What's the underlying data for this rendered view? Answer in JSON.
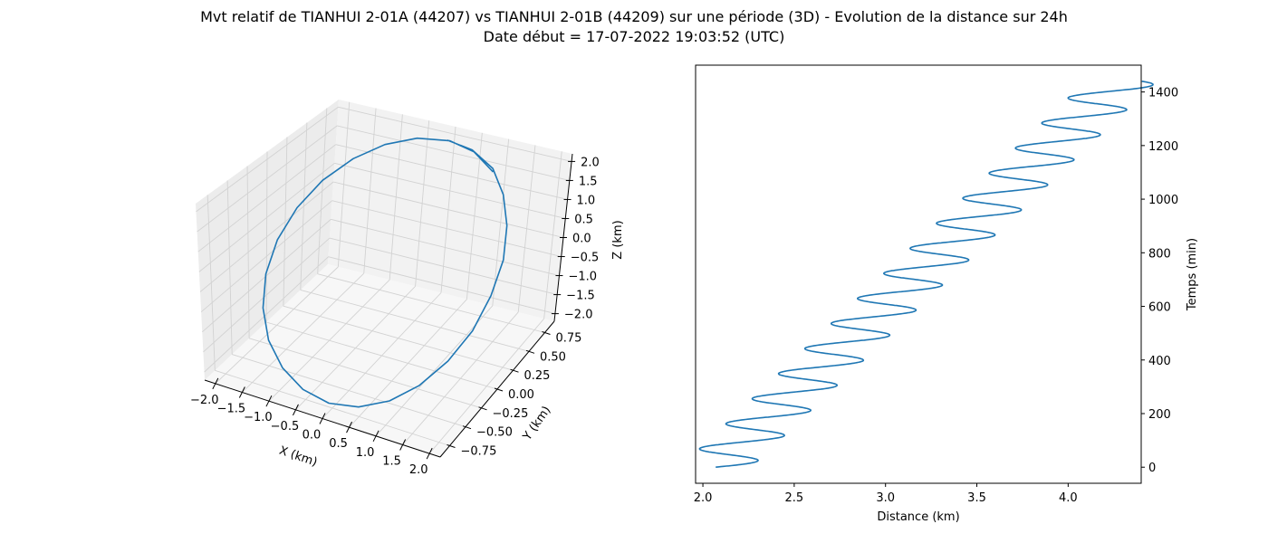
{
  "figure": {
    "title": "Mvt relatif de TIANHUI 2-01A (44207) vs TIANHUI 2-01B (44209) sur une période (3D) - Evolution de la distance sur 24h",
    "subtitle": "Date début = 17-07-2022 19:03:52 (UTC)"
  },
  "chart_data": [
    {
      "type": "line3d",
      "xlabel": "X (km)",
      "ylabel": "Y (km)",
      "zlabel": "Z (km)",
      "xlim": [
        -2.2,
        2.2
      ],
      "ylim": [
        -0.9,
        0.9
      ],
      "zlim": [
        -2.2,
        2.2
      ],
      "xticks": [
        "−2.0",
        "−1.5",
        "−1.0",
        "−0.5",
        "0.0",
        "0.5",
        "1.0",
        "1.5",
        "2.0"
      ],
      "yticks": [
        "−0.75",
        "−0.50",
        "−0.25",
        "0.00",
        "0.25",
        "0.50",
        "0.75"
      ],
      "zticks": [
        "−2.0",
        "−1.5",
        "−1.0",
        "−0.5",
        "0.0",
        "0.5",
        "1.0",
        "1.5",
        "2.0"
      ],
      "grid": true,
      "color": "#1f77b4",
      "series": [
        {
          "points": [
            [
              0.0,
              0.8,
              2.0
            ],
            [
              0.5,
              0.78,
              1.94
            ],
            [
              1.0,
              0.71,
              1.73
            ],
            [
              1.41,
              0.57,
              1.41
            ],
            [
              1.73,
              0.4,
              1.0
            ],
            [
              1.94,
              0.21,
              0.52
            ],
            [
              2.0,
              0.0,
              0.0
            ],
            [
              1.94,
              -0.21,
              -0.52
            ],
            [
              1.73,
              -0.4,
              -1.0
            ],
            [
              1.41,
              -0.57,
              -1.41
            ],
            [
              1.0,
              -0.69,
              -1.73
            ],
            [
              0.52,
              -0.77,
              -1.93
            ],
            [
              0.0,
              -0.8,
              -2.0
            ],
            [
              -0.52,
              -0.77,
              -1.93
            ],
            [
              -1.0,
              -0.69,
              -1.73
            ],
            [
              -1.41,
              -0.57,
              -1.41
            ],
            [
              -1.73,
              -0.4,
              -1.0
            ],
            [
              -1.93,
              -0.21,
              -0.52
            ],
            [
              -2.0,
              0.0,
              0.0
            ],
            [
              -1.93,
              0.21,
              0.52
            ],
            [
              -1.73,
              0.4,
              1.0
            ],
            [
              -1.41,
              0.57,
              1.41
            ],
            [
              -1.0,
              0.69,
              1.73
            ],
            [
              -0.52,
              0.77,
              1.93
            ],
            [
              0.05,
              0.8,
              2.0
            ],
            [
              0.55,
              0.77,
              1.92
            ],
            [
              1.05,
              0.68,
              1.7
            ]
          ]
        }
      ]
    },
    {
      "type": "line",
      "xlabel": "Distance (km)",
      "ylabel": "Temps (min)",
      "xlim": [
        1.96,
        4.4
      ],
      "ylim": [
        -60,
        1500
      ],
      "xticks": [
        2.0,
        2.5,
        3.0,
        3.5,
        4.0
      ],
      "yticks": [
        0,
        200,
        400,
        600,
        800,
        1000,
        1200,
        1400
      ],
      "y_axis_side": "right",
      "grid": false,
      "color": "#1f77b4",
      "series": [
        {
          "trend": {
            "x_start": 2.07,
            "x_end": 4.29,
            "t_start": 0,
            "t_end": 1440
          },
          "oscillation": {
            "amplitude_km": 0.195,
            "period_min": 93.5
          }
        }
      ]
    }
  ]
}
